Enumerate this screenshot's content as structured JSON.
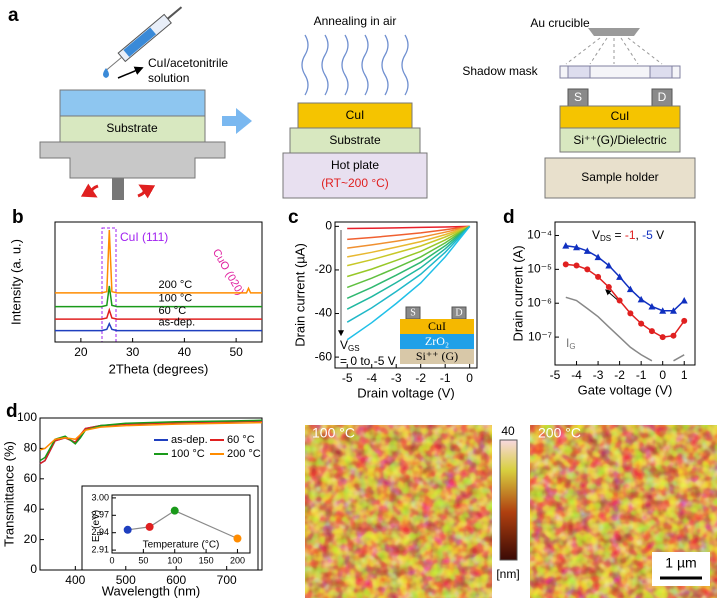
{
  "figure": {
    "panel_labels": [
      "a",
      "b",
      "c",
      "d",
      "d"
    ]
  },
  "schematic": {
    "solution": [
      "CuI/acetonitrile",
      "solution"
    ],
    "substrate_left": "Substrate",
    "annealing": "Annealing in air",
    "cui_mid": "CuI",
    "substrate_mid": "Substrate",
    "hot_plate": "Hot plate",
    "hot_plate_temp": "(RT~200 °C)",
    "au_crucible": "Au crucible",
    "shadow_mask": "Shadow mask",
    "source": "S",
    "drain": "D",
    "cui_right": "CuI",
    "dielectric": "Si⁺⁺(G)/Dielectric",
    "sample_holder": "Sample holder"
  },
  "chart_data": [
    {
      "type": "line",
      "x_label": "2Theta (degrees)",
      "y_label": "Intensity (a. u.)",
      "xlim": [
        15,
        55
      ],
      "xticks": [
        20,
        30,
        40,
        50
      ],
      "ylim": [
        0,
        10.5
      ],
      "labels": "inline",
      "annotations": [
        "CuI (111)",
        "CuO (020)"
      ],
      "x": [
        15,
        20,
        24,
        25,
        25.5,
        26,
        27,
        30,
        40,
        50,
        52,
        52.4,
        52.8,
        55
      ],
      "series": [
        {
          "name": "200 °C",
          "color": "#ff8c00",
          "values": [
            4.3,
            4.3,
            4.3,
            4.4,
            9.8,
            4.4,
            4.3,
            4.3,
            4.3,
            4.3,
            4.3,
            4.7,
            4.3,
            4.3
          ]
        },
        {
          "name": "100 °C",
          "color": "#1a9a1a",
          "values": [
            3.1,
            3.1,
            3.1,
            3.2,
            4.9,
            3.2,
            3.1,
            3.1,
            3.1,
            3.1,
            3.1,
            3.1,
            3.1,
            3.1
          ]
        },
        {
          "name": "60 °C",
          "color": "#e02020",
          "values": [
            2,
            2,
            2,
            2.1,
            2.8,
            2.1,
            2,
            2,
            2,
            2,
            2,
            2,
            2,
            2
          ]
        },
        {
          "name": "as-dep.",
          "color": "#1f3fbf",
          "values": [
            1,
            1,
            1,
            1.1,
            1.6,
            1.1,
            1,
            1,
            1,
            1,
            1,
            1,
            1,
            1
          ]
        }
      ]
    },
    {
      "type": "line",
      "x_label": "Drain voltage (V)",
      "y_label": "Drain current (µA)",
      "xlim": [
        -5.5,
        0.3
      ],
      "xticks": [
        -5,
        -4,
        -3,
        -2,
        -1,
        0
      ],
      "ylim": [
        -65,
        2
      ],
      "yticks": [
        0,
        -20,
        -40,
        -60
      ],
      "annotation": {
        "v": "V",
        "sub": "GS",
        "range": "= 0 to -5 V"
      },
      "inset": {
        "s": "S",
        "d": "D",
        "layers": [
          "CuI",
          "ZrO₂",
          "Si⁺⁺ (G)"
        ]
      },
      "x": [
        -5,
        -4,
        -3,
        -2,
        -1,
        0
      ],
      "series": [
        {
          "color": "#e8202a",
          "values": [
            -1,
            -0.9,
            -0.7,
            -0.5,
            -0.3,
            0
          ]
        },
        {
          "color": "#f06030",
          "values": [
            -6,
            -5.1,
            -4.1,
            -3,
            -1.6,
            0
          ]
        },
        {
          "color": "#f09030",
          "values": [
            -10,
            -8.5,
            -6.8,
            -5,
            -2.7,
            0
          ]
        },
        {
          "color": "#e8b830",
          "values": [
            -14,
            -11.9,
            -9.5,
            -7,
            -3.8,
            0
          ]
        },
        {
          "color": "#c8c828",
          "values": [
            -18,
            -15.3,
            -12.2,
            -9,
            -4.9,
            0
          ]
        },
        {
          "color": "#98c828",
          "values": [
            -23,
            -19.6,
            -15.6,
            -11.5,
            -6.2,
            0
          ]
        },
        {
          "color": "#60c040",
          "values": [
            -28,
            -23.8,
            -19,
            -14,
            -7.6,
            0
          ]
        },
        {
          "color": "#30b870",
          "values": [
            -33,
            -28,
            -22.4,
            -16.5,
            -8.9,
            0
          ]
        },
        {
          "color": "#20b8a0",
          "values": [
            -38,
            -32.3,
            -25.8,
            -19,
            -10.3,
            0
          ]
        },
        {
          "color": "#20b8c8",
          "values": [
            -44,
            -37.4,
            -29.9,
            -22,
            -11.9,
            0
          ]
        },
        {
          "color": "#20c0e8",
          "values": [
            -52,
            -44.2,
            -35.4,
            -26,
            -14,
            0
          ]
        }
      ]
    },
    {
      "type": "line",
      "x_label": "Gate voltage (V)",
      "y_label": "Drain current (A)",
      "log_y": true,
      "xlim": [
        -5,
        1.5
      ],
      "xticks": [
        -5,
        -4,
        -3,
        -2,
        -1,
        0,
        1
      ],
      "ylim": [
        1.5e-08,
        0.00025
      ],
      "yticks": [
        {
          "value": 1e-07,
          "label": "10⁻⁷"
        },
        {
          "value": 1e-06,
          "label": "10⁻⁶"
        },
        {
          "value": 1e-05,
          "label": "10⁻⁵"
        },
        {
          "value": 0.0001,
          "label": "10⁻⁴"
        }
      ],
      "annotation": {
        "v": "V",
        "sub": "DS",
        "eq": " = ",
        "sep": ", ",
        "unit": " V",
        "ig": "I",
        "ig_sub": "G"
      },
      "x": [
        -4.5,
        -4,
        -3.5,
        -3,
        -2.5,
        -2,
        -1.5,
        -1,
        -0.5,
        0,
        0.5,
        1
      ],
      "series": [
        {
          "name": "-1",
          "color": "#e02020",
          "marker": "circle",
          "values": [
            1.4e-05,
            1.3e-05,
            1e-05,
            6e-06,
            3e-06,
            1.2e-06,
            5e-07,
            2.5e-07,
            1.5e-07,
            1e-07,
            1.1e-07,
            3e-07
          ]
        },
        {
          "name": "-5",
          "color": "#1030c0",
          "marker": "triangle",
          "values": [
            5e-05,
            4.5e-05,
            3.5e-05,
            2.3e-05,
            1.3e-05,
            6e-06,
            2.6e-06,
            1.3e-06,
            8e-07,
            6e-07,
            6e-07,
            1.2e-06
          ]
        },
        {
          "color": "#888888",
          "values": [
            1.5e-06,
            1.2e-06,
            7e-07,
            4e-07,
            2e-07,
            1e-07,
            5e-08,
            3e-08,
            2e-08,
            null,
            2e-08,
            3e-08
          ]
        }
      ]
    },
    {
      "type": "line",
      "x_label": "Wavelength (nm)",
      "y_label": "Transmittance (%)",
      "legend": "top-right",
      "xlim": [
        330,
        770
      ],
      "xticks": [
        400,
        500,
        600,
        700
      ],
      "ylim": [
        0,
        100
      ],
      "yticks": [
        0,
        20,
        40,
        60,
        80,
        100
      ],
      "x": [
        330,
        340,
        360,
        380,
        400,
        410,
        420,
        450,
        500,
        600,
        700,
        770
      ],
      "series": [
        {
          "name": "as-dep.",
          "color": "#1f3fbf",
          "values": [
            70,
            72,
            85,
            87,
            84,
            88,
            93,
            95,
            96,
            97,
            97.5,
            98
          ]
        },
        {
          "name": "60 °C",
          "color": "#e02020",
          "values": [
            70,
            72,
            85,
            87,
            84,
            89,
            93,
            95,
            96,
            97,
            97.5,
            98
          ]
        },
        {
          "name": "100 °C",
          "color": "#1a9a1a",
          "values": [
            72,
            74,
            86,
            88,
            83,
            87,
            92,
            95,
            96.5,
            97.5,
            98,
            98.5
          ]
        },
        {
          "name": "200 °C",
          "color": "#ff8c00",
          "values": [
            79,
            80,
            86,
            87,
            86,
            89,
            92,
            94,
            95,
            96,
            96.5,
            97
          ]
        }
      ]
    },
    {
      "type": "scatter",
      "x_label": "Temperature (°C)",
      "y_label": [
        "E",
        "g",
        " (eV)"
      ],
      "xlim": [
        0,
        220
      ],
      "xticks": [
        0,
        50,
        100,
        150,
        200
      ],
      "ylim": [
        2.905,
        3.005
      ],
      "yticks": [
        2.91,
        2.94,
        2.97,
        {
          "value": 3.0,
          "label": "3.00"
        }
      ],
      "x": [
        25,
        60,
        100,
        200
      ],
      "values": [
        2.945,
        2.95,
        2.978,
        2.93
      ],
      "colors": [
        "#1f3fbf",
        "#e02020",
        "#1a9a1a",
        "#ff8c00"
      ],
      "line_color": "#8a8a8a"
    }
  ],
  "afm": {
    "left": "100 °C",
    "right": "200 °C",
    "colorbar_max": "40",
    "unit": "[nm]",
    "scale": "1 µm"
  }
}
